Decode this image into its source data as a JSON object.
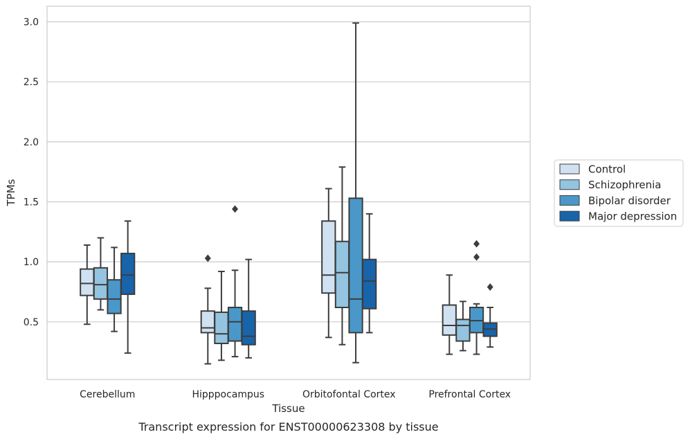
{
  "caption": "Transcript expression for ENST00000623308 by tissue",
  "chart_data": {
    "type": "box",
    "title": "",
    "xlabel": "Tissue",
    "ylabel": "TPMs",
    "ylim": [
      0.02,
      3.13
    ],
    "yticks": [
      "0.5",
      "1.0",
      "1.5",
      "2.0",
      "2.5",
      "3.0"
    ],
    "grid": "horizontal",
    "legend_position": "right",
    "categories": [
      "Cerebellum",
      "Hipppocampus",
      "Orbitofontal Cortex",
      "Prefrontal Cortex"
    ],
    "series": [
      {
        "name": "Control",
        "color": "#d0e1f2",
        "boxes": [
          {
            "whislo": 0.48,
            "q1": 0.72,
            "med": 0.82,
            "q3": 0.94,
            "whishi": 1.14,
            "fliers": []
          },
          {
            "whislo": 0.15,
            "q1": 0.41,
            "med": 0.45,
            "q3": 0.59,
            "whishi": 0.78,
            "fliers": [
              1.03
            ]
          },
          {
            "whislo": 0.37,
            "q1": 0.74,
            "med": 0.89,
            "q3": 1.34,
            "whishi": 1.61,
            "fliers": []
          },
          {
            "whislo": 0.23,
            "q1": 0.39,
            "med": 0.47,
            "q3": 0.64,
            "whishi": 0.89,
            "fliers": []
          }
        ]
      },
      {
        "name": "Schizophrenia",
        "color": "#94c4df",
        "boxes": [
          {
            "whislo": 0.6,
            "q1": 0.69,
            "med": 0.81,
            "q3": 0.95,
            "whishi": 1.2,
            "fliers": []
          },
          {
            "whislo": 0.18,
            "q1": 0.32,
            "med": 0.4,
            "q3": 0.58,
            "whishi": 0.92,
            "fliers": []
          },
          {
            "whislo": 0.31,
            "q1": 0.62,
            "med": 0.91,
            "q3": 1.17,
            "whishi": 1.79,
            "fliers": []
          },
          {
            "whislo": 0.26,
            "q1": 0.34,
            "med": 0.47,
            "q3": 0.52,
            "whishi": 0.67,
            "fliers": []
          }
        ]
      },
      {
        "name": "Bipolar disorder",
        "color": "#4a98c9",
        "boxes": [
          {
            "whislo": 0.42,
            "q1": 0.57,
            "med": 0.69,
            "q3": 0.85,
            "whishi": 1.12,
            "fliers": []
          },
          {
            "whislo": 0.21,
            "q1": 0.34,
            "med": 0.5,
            "q3": 0.62,
            "whishi": 0.93,
            "fliers": [
              1.44
            ]
          },
          {
            "whislo": 0.16,
            "q1": 0.41,
            "med": 0.69,
            "q3": 1.53,
            "whishi": 2.99,
            "fliers": []
          },
          {
            "whislo": 0.23,
            "q1": 0.41,
            "med": 0.51,
            "q3": 0.62,
            "whishi": 0.65,
            "fliers": [
              1.04,
              1.15
            ]
          }
        ]
      },
      {
        "name": "Major depression",
        "color": "#1764ab",
        "boxes": [
          {
            "whislo": 0.24,
            "q1": 0.73,
            "med": 0.89,
            "q3": 1.07,
            "whishi": 1.34,
            "fliers": []
          },
          {
            "whislo": 0.2,
            "q1": 0.31,
            "med": 0.38,
            "q3": 0.59,
            "whishi": 1.02,
            "fliers": []
          },
          {
            "whislo": 0.41,
            "q1": 0.61,
            "med": 0.84,
            "q3": 1.02,
            "whishi": 1.4,
            "fliers": []
          },
          {
            "whislo": 0.29,
            "q1": 0.38,
            "med": 0.44,
            "q3": 0.49,
            "whishi": 0.62,
            "fliers": [
              0.79
            ]
          }
        ]
      }
    ]
  }
}
